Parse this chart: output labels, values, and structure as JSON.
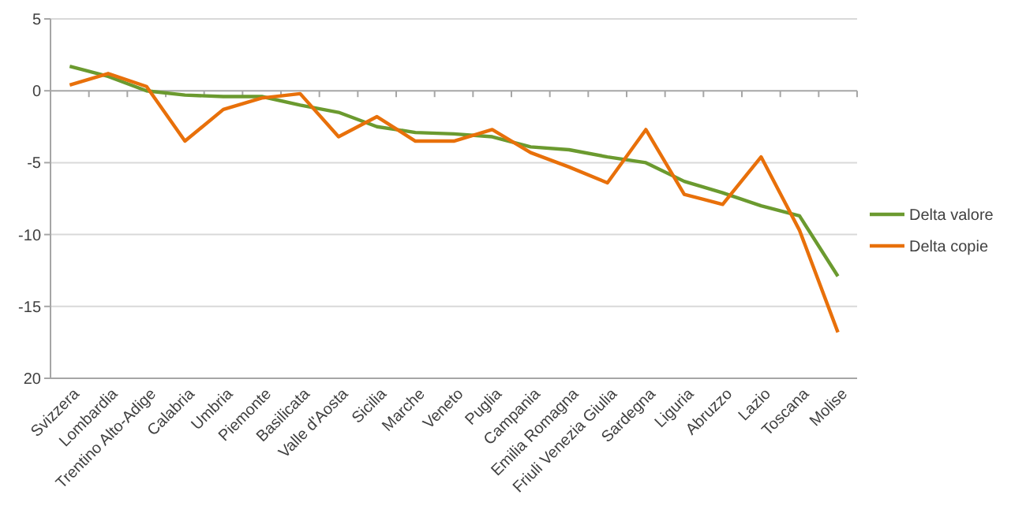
{
  "chart_data": {
    "type": "line",
    "categories": [
      "Svizzera",
      "Lombardia",
      "Trentino Alto-Adige",
      "Calabria",
      "Umbria",
      "Piemonte",
      "Basilicata",
      "Valle d'Aosta",
      "Sicilia",
      "Marche",
      "Veneto",
      "Puglia",
      "Campania",
      "Emilia Romagna",
      "Friuli Venezia Giulia",
      "Sardegna",
      "Liguria",
      "Abruzzo",
      "Lazio",
      "Toscana",
      "Molise"
    ],
    "series": [
      {
        "name": "Delta valore",
        "color": "#6b9a2f",
        "values": [
          1.7,
          1.0,
          0.0,
          -0.3,
          -0.4,
          -0.4,
          -1.0,
          -1.5,
          -2.5,
          -2.9,
          -3.0,
          -3.2,
          -3.9,
          -4.1,
          -4.6,
          -5.0,
          -6.3,
          -7.1,
          -8.0,
          -8.7,
          -12.9
        ]
      },
      {
        "name": "Delta copie",
        "color": "#e8700a",
        "values": [
          0.4,
          1.2,
          0.3,
          -3.5,
          -1.3,
          -0.5,
          -0.2,
          -3.2,
          -1.8,
          -3.5,
          -3.5,
          -2.7,
          -4.3,
          -5.3,
          -6.4,
          -2.7,
          -7.2,
          -7.9,
          -4.6,
          -9.7,
          -16.8
        ]
      }
    ],
    "ylim": [
      -20,
      5
    ],
    "yticks": [
      5,
      0,
      -5,
      -10,
      -15,
      {
        "value": -20,
        "label": "20"
      }
    ],
    "grid": "y",
    "legend": "right",
    "marker": "none",
    "line_style": "solid"
  }
}
